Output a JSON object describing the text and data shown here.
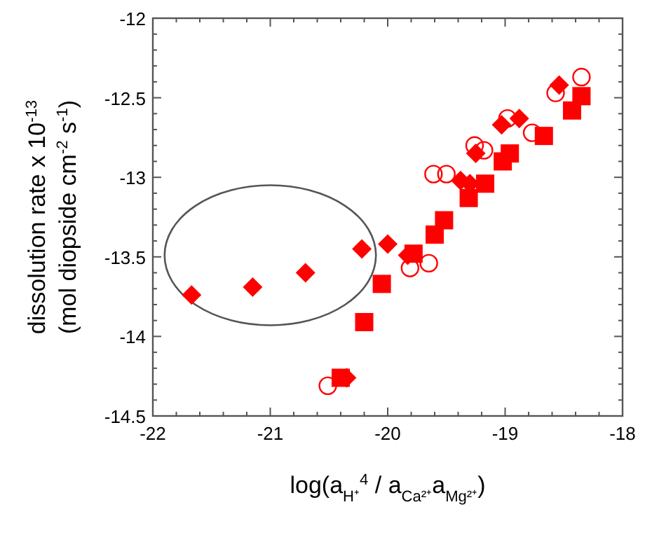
{
  "chart_data": {
    "type": "scatter",
    "xlabel": "log(a$_{H⁺}$$^{4}$ / a$_{Ca²⁺}$a$_{Mg²⁺}$)",
    "ylabel": "dissolution rate x 10$^{-13}$\n(mol diopside cm$^{-2}$ s$^{-1}$)",
    "xlim": [
      -22,
      -18
    ],
    "ylim": [
      -14.5,
      -12
    ],
    "xticks": [
      -22,
      {
        "value": -21.8,
        "label": null
      },
      {
        "value": -21.6,
        "label": null
      },
      {
        "value": -21.4,
        "label": null
      },
      {
        "value": -21.2,
        "label": null
      },
      -21,
      {
        "value": -20.8,
        "label": null
      },
      {
        "value": -20.6,
        "label": null
      },
      {
        "value": -20.4,
        "label": null
      },
      {
        "value": -20.2,
        "label": null
      },
      -20,
      {
        "value": -19.8,
        "label": null
      },
      {
        "value": -19.6,
        "label": null
      },
      {
        "value": -19.4,
        "label": null
      },
      {
        "value": -19.2,
        "label": null
      },
      -19,
      {
        "value": -18.8,
        "label": null
      },
      {
        "value": -18.6,
        "label": null
      },
      {
        "value": -18.4,
        "label": null
      },
      {
        "value": -18.2,
        "label": null
      },
      -18
    ],
    "yticks": [
      -14.5,
      {
        "value": -14.4,
        "label": null
      },
      {
        "value": -14.3,
        "label": null
      },
      {
        "value": -14.2,
        "label": null
      },
      {
        "value": -14.1,
        "label": null
      },
      -14,
      {
        "value": -13.9,
        "label": null
      },
      {
        "value": -13.8,
        "label": null
      },
      {
        "value": -13.7,
        "label": null
      },
      {
        "value": -13.6,
        "label": null
      },
      -13.5,
      {
        "value": -13.4,
        "label": null
      },
      {
        "value": -13.3,
        "label": null
      },
      {
        "value": -13.2,
        "label": null
      },
      {
        "value": -13.1,
        "label": null
      },
      -13,
      {
        "value": -12.9,
        "label": null
      },
      {
        "value": -12.8,
        "label": null
      },
      {
        "value": -12.7,
        "label": null
      },
      {
        "value": -12.6,
        "label": null
      },
      -12.5,
      {
        "value": -12.4,
        "label": null
      },
      {
        "value": -12.3,
        "label": null
      },
      {
        "value": -12.2,
        "label": null
      },
      {
        "value": -12.1,
        "label": null
      },
      -12
    ],
    "grid": false,
    "series": [
      {
        "color": "#ff0000",
        "marker": "diamond",
        "x": [
          -21.67,
          -21.15,
          -20.7,
          -20.22,
          -20.0,
          -19.83,
          -20.35,
          -19.38,
          -19.3,
          -19.25,
          -19.03,
          -18.88,
          -18.54
        ],
        "values": [
          -13.74,
          -13.69,
          -13.6,
          -13.45,
          -13.42,
          -13.49,
          -14.26,
          -13.02,
          -13.04,
          -12.85,
          -12.67,
          -12.63,
          -12.42
        ]
      },
      {
        "color": "#ff0000",
        "marker": "square",
        "x": [
          -20.4,
          -20.2,
          -20.05,
          -19.78,
          -19.6,
          -19.52,
          -19.31,
          -19.17,
          -19.02,
          -18.96,
          -18.67,
          -18.43,
          -18.35
        ],
        "values": [
          -14.26,
          -13.91,
          -13.67,
          -13.48,
          -13.36,
          -13.27,
          -13.13,
          -13.04,
          -12.9,
          -12.85,
          -12.74,
          -12.58,
          -12.49
        ]
      },
      {
        "color": "#ff0000",
        "marker": "circle",
        "x": [
          -20.51,
          -19.81,
          -19.65,
          -19.61,
          -19.5,
          -19.26,
          -19.18,
          -18.98,
          -18.77,
          -18.57,
          -18.35
        ],
        "values": [
          -14.31,
          -13.57,
          -13.54,
          -12.98,
          -12.98,
          -12.8,
          -12.83,
          -12.63,
          -12.72,
          -12.47,
          -12.37
        ]
      }
    ]
  }
}
